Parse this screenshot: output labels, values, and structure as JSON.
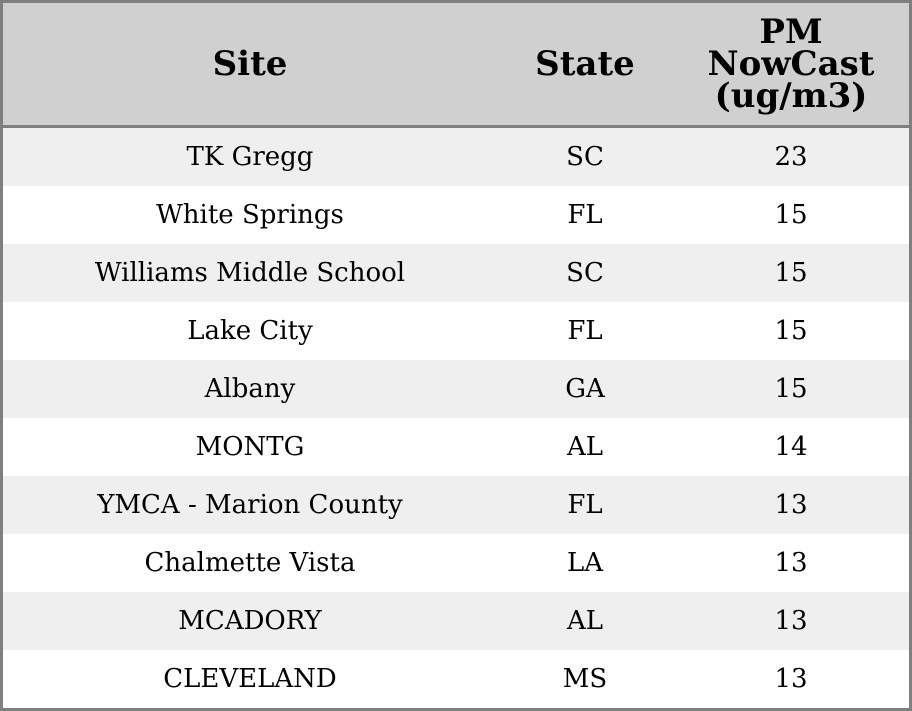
{
  "table": {
    "headers": [
      "Site",
      "State",
      "PM\nNowCast\n(ug/m3)"
    ],
    "rows": [
      [
        "TK Gregg",
        "SC",
        "23"
      ],
      [
        "White Springs",
        "FL",
        "15"
      ],
      [
        "Williams Middle School",
        "SC",
        "15"
      ],
      [
        "Lake City",
        "FL",
        "15"
      ],
      [
        "Albany",
        "GA",
        "15"
      ],
      [
        "MONTG",
        "AL",
        "14"
      ],
      [
        "YMCA - Marion County",
        "FL",
        "13"
      ],
      [
        "Chalmette Vista",
        "LA",
        "13"
      ],
      [
        "MCADORY",
        "AL",
        "13"
      ],
      [
        "CLEVELAND",
        "MS",
        "13"
      ]
    ]
  },
  "colors": {
    "header_bg": "#d0d0d0",
    "row_alt_bg": "#efefef",
    "row_bg": "#ffffff",
    "border": "#7f7f7f"
  }
}
